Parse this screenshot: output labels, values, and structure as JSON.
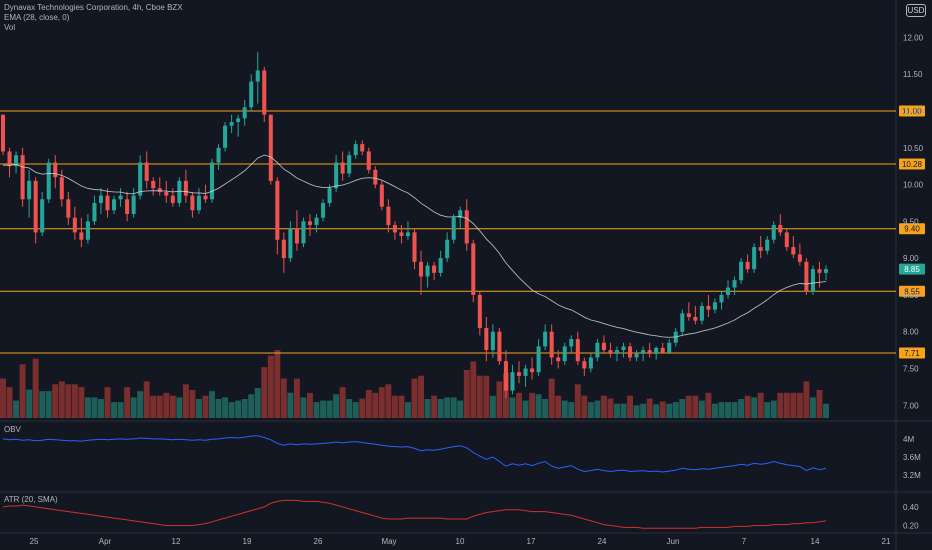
{
  "legend": {
    "main": "Dynavax Technologies Corporation, 4h, Cboe BZX",
    "ema": "EMA (28, close, 0)",
    "vol": "Vol",
    "obv": "OBV",
    "atr": "ATR (20, SMA)"
  },
  "currency": "USD",
  "colors": {
    "bg": "#131722",
    "up": "#26a69a",
    "down": "#ef5350",
    "vol_up": "#1e5f59",
    "vol_down": "#7a2e2e",
    "level": "#f7a21b",
    "ema": "#d1d4dc",
    "obv": "#2962ff",
    "atr": "#d32f2f",
    "axis_text": "#b2b5be",
    "sep": "#2a2e39"
  },
  "chart_data": [
    {
      "type": "candlestick",
      "panel": "price",
      "title": "Dynavax Technologies Corporation, 4h, Cboe BZX",
      "currency": "USD",
      "ylim": [
        6.8,
        12.4
      ],
      "yticks": [
        7.0,
        7.5,
        8.0,
        8.5,
        9.0,
        9.5,
        10.0,
        10.5,
        11.0,
        11.5,
        12.0
      ],
      "x_tick_labels": [
        "25",
        "Apr",
        "12",
        "19",
        "26",
        "May",
        "10",
        "17",
        "24",
        "Jun",
        "7",
        "14",
        "21"
      ],
      "level_labels": [
        "11.00",
        "10.28",
        "9.40",
        "8.55",
        "7.71"
      ],
      "levels": [
        11.0,
        10.28,
        9.4,
        8.55,
        7.71
      ],
      "last_price": 8.85,
      "ohlc": [
        [
          10.95,
          10.95,
          10.4,
          10.45
        ],
        [
          10.45,
          10.5,
          10.1,
          10.25
        ],
        [
          10.25,
          10.45,
          10.15,
          10.4
        ],
        [
          10.4,
          10.5,
          9.7,
          9.8
        ],
        [
          9.8,
          10.2,
          9.55,
          10.05
        ],
        [
          10.05,
          10.1,
          9.2,
          9.35
        ],
        [
          9.35,
          9.9,
          9.3,
          9.8
        ],
        [
          9.8,
          10.35,
          9.75,
          10.3
        ],
        [
          10.3,
          10.4,
          9.95,
          10.1
        ],
        [
          10.1,
          10.2,
          9.7,
          9.8
        ],
        [
          9.8,
          9.9,
          9.45,
          9.55
        ],
        [
          9.55,
          9.7,
          9.25,
          9.35
        ],
        [
          9.35,
          9.55,
          9.15,
          9.25
        ],
        [
          9.25,
          9.6,
          9.2,
          9.5
        ],
        [
          9.5,
          9.85,
          9.45,
          9.75
        ],
        [
          9.75,
          9.95,
          9.6,
          9.85
        ],
        [
          9.85,
          9.95,
          9.55,
          9.65
        ],
        [
          9.65,
          9.85,
          9.6,
          9.8
        ],
        [
          9.8,
          9.95,
          9.7,
          9.85
        ],
        [
          9.8,
          9.9,
          9.5,
          9.6
        ],
        [
          9.6,
          9.95,
          9.55,
          9.85
        ],
        [
          9.85,
          10.4,
          9.8,
          10.3
        ],
        [
          10.3,
          10.45,
          9.95,
          10.05
        ],
        [
          10.05,
          10.1,
          9.85,
          9.95
        ],
        [
          9.95,
          10.1,
          9.85,
          9.9
        ],
        [
          9.9,
          10.05,
          9.75,
          9.85
        ],
        [
          9.85,
          9.95,
          9.7,
          9.75
        ],
        [
          9.75,
          10.1,
          9.7,
          10.05
        ],
        [
          10.05,
          10.2,
          9.75,
          9.85
        ],
        [
          9.85,
          9.9,
          9.55,
          9.65
        ],
        [
          9.65,
          9.95,
          9.6,
          9.85
        ],
        [
          9.85,
          10.0,
          9.75,
          9.8
        ],
        [
          9.8,
          10.35,
          9.75,
          10.3
        ],
        [
          10.3,
          10.55,
          10.2,
          10.5
        ],
        [
          10.5,
          10.85,
          10.45,
          10.8
        ],
        [
          10.8,
          10.95,
          10.7,
          10.85
        ],
        [
          10.85,
          10.95,
          10.65,
          10.9
        ],
        [
          10.9,
          11.15,
          10.8,
          11.05
        ],
        [
          11.05,
          11.5,
          11.0,
          11.4
        ],
        [
          11.4,
          11.8,
          11.1,
          11.55
        ],
        [
          11.55,
          11.6,
          10.85,
          10.95
        ],
        [
          10.95,
          10.95,
          10.0,
          10.05
        ],
        [
          10.05,
          10.1,
          9.05,
          9.25
        ],
        [
          9.25,
          9.35,
          8.8,
          9.0
        ],
        [
          9.0,
          9.5,
          8.95,
          9.4
        ],
        [
          9.4,
          9.65,
          9.1,
          9.2
        ],
        [
          9.2,
          9.55,
          9.15,
          9.5
        ],
        [
          9.5,
          9.6,
          9.3,
          9.45
        ],
        [
          9.45,
          9.6,
          9.35,
          9.55
        ],
        [
          9.55,
          9.8,
          9.5,
          9.75
        ],
        [
          9.75,
          10.0,
          9.7,
          9.95
        ],
        [
          9.95,
          10.4,
          9.9,
          10.3
        ],
        [
          10.3,
          10.45,
          10.05,
          10.15
        ],
        [
          10.15,
          10.45,
          10.1,
          10.4
        ],
        [
          10.4,
          10.6,
          10.35,
          10.55
        ],
        [
          10.55,
          10.6,
          10.4,
          10.45
        ],
        [
          10.45,
          10.5,
          10.15,
          10.2
        ],
        [
          10.2,
          10.25,
          9.95,
          10.0
        ],
        [
          10.0,
          10.05,
          9.65,
          9.7
        ],
        [
          9.7,
          9.8,
          9.35,
          9.45
        ],
        [
          9.45,
          9.5,
          9.25,
          9.35
        ],
        [
          9.35,
          9.45,
          9.2,
          9.3
        ],
        [
          9.3,
          9.5,
          9.25,
          9.35
        ],
        [
          9.35,
          9.4,
          8.85,
          8.95
        ],
        [
          8.95,
          9.1,
          8.5,
          8.75
        ],
        [
          8.75,
          8.95,
          8.6,
          8.9
        ],
        [
          8.9,
          8.95,
          8.7,
          8.8
        ],
        [
          8.8,
          9.1,
          8.75,
          9.0
        ],
        [
          9.0,
          9.35,
          8.95,
          9.25
        ],
        [
          9.25,
          9.6,
          9.2,
          9.55
        ],
        [
          9.55,
          9.7,
          9.4,
          9.65
        ],
        [
          9.65,
          9.8,
          9.1,
          9.2
        ],
        [
          9.2,
          9.25,
          8.4,
          8.5
        ],
        [
          8.5,
          8.55,
          7.95,
          8.05
        ],
        [
          8.05,
          8.2,
          7.6,
          7.75
        ],
        [
          7.75,
          8.1,
          7.65,
          8.0
        ],
        [
          8.0,
          8.05,
          7.55,
          7.6
        ],
        [
          7.6,
          7.75,
          7.1,
          7.2
        ],
        [
          7.2,
          7.55,
          7.15,
          7.45
        ],
        [
          7.45,
          7.6,
          7.3,
          7.4
        ],
        [
          7.4,
          7.55,
          7.25,
          7.5
        ],
        [
          7.5,
          7.65,
          7.35,
          7.45
        ],
        [
          7.45,
          7.9,
          7.4,
          7.8
        ],
        [
          7.8,
          8.1,
          7.75,
          8.0
        ],
        [
          8.0,
          8.1,
          7.55,
          7.65
        ],
        [
          7.65,
          7.75,
          7.5,
          7.6
        ],
        [
          7.6,
          7.85,
          7.55,
          7.8
        ],
        [
          7.8,
          7.95,
          7.7,
          7.9
        ],
        [
          7.9,
          8.0,
          7.55,
          7.6
        ],
        [
          7.6,
          7.65,
          7.4,
          7.5
        ],
        [
          7.5,
          7.7,
          7.45,
          7.65
        ],
        [
          7.65,
          7.9,
          7.6,
          7.85
        ],
        [
          7.85,
          7.95,
          7.7,
          7.75
        ],
        [
          7.75,
          7.85,
          7.65,
          7.7
        ],
        [
          7.7,
          7.8,
          7.6,
          7.75
        ],
        [
          7.75,
          7.85,
          7.65,
          7.8
        ],
        [
          7.8,
          7.85,
          7.6,
          7.65
        ],
        [
          7.65,
          7.75,
          7.6,
          7.7
        ],
        [
          7.7,
          7.8,
          7.6,
          7.75
        ],
        [
          7.75,
          7.85,
          7.65,
          7.7
        ],
        [
          7.7,
          7.8,
          7.62,
          7.78
        ],
        [
          7.78,
          7.85,
          7.7,
          7.72
        ],
        [
          7.72,
          7.9,
          7.7,
          7.85
        ],
        [
          7.85,
          8.05,
          7.8,
          8.0
        ],
        [
          8.0,
          8.3,
          7.95,
          8.25
        ],
        [
          8.25,
          8.4,
          8.15,
          8.2
        ],
        [
          8.2,
          8.35,
          8.1,
          8.15
        ],
        [
          8.15,
          8.4,
          8.1,
          8.35
        ],
        [
          8.35,
          8.5,
          8.2,
          8.3
        ],
        [
          8.3,
          8.45,
          8.25,
          8.4
        ],
        [
          8.4,
          8.55,
          8.3,
          8.5
        ],
        [
          8.5,
          8.7,
          8.45,
          8.6
        ],
        [
          8.6,
          8.75,
          8.5,
          8.7
        ],
        [
          8.7,
          9.0,
          8.65,
          8.95
        ],
        [
          8.95,
          9.05,
          8.8,
          8.85
        ],
        [
          8.85,
          9.2,
          8.8,
          9.15
        ],
        [
          9.15,
          9.3,
          9.0,
          9.1
        ],
        [
          9.1,
          9.3,
          9.05,
          9.25
        ],
        [
          9.25,
          9.5,
          9.2,
          9.45
        ],
        [
          9.45,
          9.6,
          9.3,
          9.35
        ],
        [
          9.35,
          9.4,
          9.1,
          9.15
        ],
        [
          9.15,
          9.3,
          9.0,
          9.05
        ],
        [
          9.05,
          9.2,
          8.9,
          8.95
        ],
        [
          8.95,
          9.0,
          8.5,
          8.55
        ],
        [
          8.55,
          8.9,
          8.5,
          8.85
        ],
        [
          8.85,
          8.95,
          8.6,
          8.8
        ],
        [
          8.8,
          8.9,
          8.7,
          8.85
        ]
      ]
    },
    {
      "type": "bar",
      "panel": "volume",
      "name": "Vol"
    },
    {
      "type": "line",
      "panel": "indicator",
      "name": "OBV",
      "ylim": [
        2.85,
        4.35
      ],
      "yticks": [
        3.2,
        3.6,
        4.0
      ],
      "tick_labels": [
        "3.2M",
        "3.6M",
        "4M"
      ],
      "unit": "M",
      "values": [
        4.0,
        3.98,
        3.99,
        3.97,
        3.98,
        3.96,
        3.97,
        3.99,
        3.98,
        3.97,
        3.96,
        3.96,
        3.95,
        3.97,
        3.98,
        3.99,
        3.98,
        3.99,
        4.0,
        3.99,
        4.0,
        4.02,
        4.01,
        4.0,
        4.0,
        3.99,
        3.98,
        3.99,
        3.98,
        3.97,
        3.98,
        3.97,
        3.99,
        4.0,
        4.02,
        4.03,
        4.02,
        4.04,
        4.06,
        4.07,
        4.03,
        3.98,
        3.9,
        3.86,
        3.89,
        3.87,
        3.89,
        3.88,
        3.89,
        3.9,
        3.91,
        3.93,
        3.91,
        3.93,
        3.94,
        3.92,
        3.9,
        3.88,
        3.86,
        3.84,
        3.83,
        3.82,
        3.83,
        3.79,
        3.74,
        3.76,
        3.75,
        3.77,
        3.8,
        3.83,
        3.85,
        3.8,
        3.7,
        3.62,
        3.55,
        3.6,
        3.5,
        3.4,
        3.45,
        3.42,
        3.45,
        3.41,
        3.46,
        3.5,
        3.4,
        3.35,
        3.38,
        3.41,
        3.33,
        3.28,
        3.3,
        3.33,
        3.3,
        3.28,
        3.3,
        3.31,
        3.28,
        3.29,
        3.3,
        3.28,
        3.29,
        3.27,
        3.29,
        3.31,
        3.35,
        3.33,
        3.32,
        3.34,
        3.33,
        3.35,
        3.37,
        3.39,
        3.41,
        3.44,
        3.42,
        3.46,
        3.44,
        3.46,
        3.5,
        3.46,
        3.43,
        3.41,
        3.39,
        3.3,
        3.36,
        3.32,
        3.35
      ]
    },
    {
      "type": "line",
      "panel": "indicator",
      "name": "ATR (20, SMA)",
      "ylim": [
        0.13,
        0.55
      ],
      "yticks": [
        0.2,
        0.4
      ],
      "tick_labels": [
        "0.20",
        "0.40"
      ],
      "values": [
        0.4,
        0.41,
        0.41,
        0.42,
        0.41,
        0.4,
        0.39,
        0.38,
        0.37,
        0.36,
        0.35,
        0.34,
        0.33,
        0.32,
        0.31,
        0.3,
        0.29,
        0.28,
        0.27,
        0.26,
        0.25,
        0.24,
        0.23,
        0.22,
        0.21,
        0.2,
        0.2,
        0.2,
        0.2,
        0.2,
        0.21,
        0.22,
        0.24,
        0.26,
        0.28,
        0.3,
        0.32,
        0.34,
        0.36,
        0.38,
        0.4,
        0.44,
        0.46,
        0.47,
        0.47,
        0.47,
        0.46,
        0.46,
        0.46,
        0.45,
        0.44,
        0.42,
        0.4,
        0.38,
        0.36,
        0.34,
        0.32,
        0.3,
        0.28,
        0.27,
        0.27,
        0.27,
        0.28,
        0.28,
        0.28,
        0.28,
        0.28,
        0.28,
        0.27,
        0.27,
        0.27,
        0.27,
        0.3,
        0.32,
        0.34,
        0.35,
        0.36,
        0.37,
        0.37,
        0.37,
        0.36,
        0.35,
        0.35,
        0.35,
        0.34,
        0.33,
        0.32,
        0.31,
        0.29,
        0.27,
        0.25,
        0.23,
        0.21,
        0.2,
        0.19,
        0.18,
        0.18,
        0.18,
        0.17,
        0.17,
        0.17,
        0.17,
        0.17,
        0.17,
        0.17,
        0.17,
        0.17,
        0.18,
        0.18,
        0.18,
        0.18,
        0.18,
        0.19,
        0.19,
        0.19,
        0.2,
        0.2,
        0.2,
        0.21,
        0.21,
        0.21,
        0.22,
        0.22,
        0.23,
        0.23,
        0.24,
        0.25
      ]
    }
  ]
}
